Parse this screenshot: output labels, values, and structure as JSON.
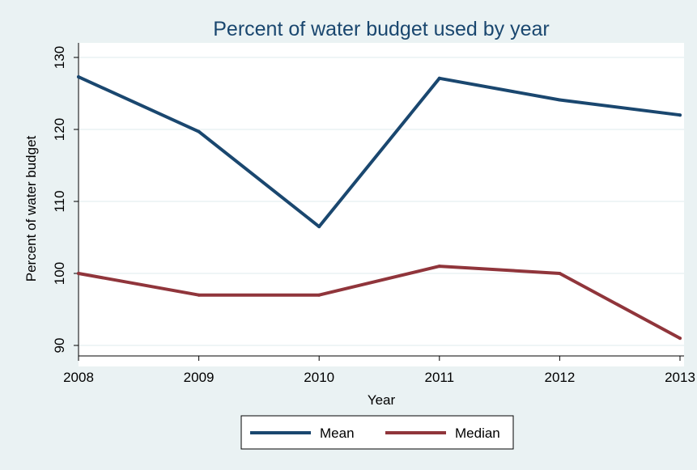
{
  "chart_data": {
    "type": "line",
    "title": "Percent of water budget used by year",
    "xlabel": "Year",
    "ylabel": "Percent of water budget",
    "x": [
      2008,
      2009,
      2010,
      2011,
      2012,
      2013
    ],
    "xlim": [
      2008,
      2013
    ],
    "ylim": [
      90,
      130
    ],
    "yticks": [
      90,
      100,
      110,
      120,
      130
    ],
    "grid": "horizontal",
    "legend_position": "bottom",
    "series": [
      {
        "name": "Mean",
        "color": "#1a476f",
        "values": [
          127.3,
          119.7,
          106.5,
          127.1,
          124.1,
          122.0
        ]
      },
      {
        "name": "Median",
        "color": "#90353b",
        "values": [
          100,
          97,
          97,
          101,
          100,
          91
        ]
      }
    ]
  },
  "colors": {
    "background": "#eaf2f3",
    "plot_background": "#ffffff",
    "gridline": "#eaf2f3",
    "title": "#1a476f"
  }
}
